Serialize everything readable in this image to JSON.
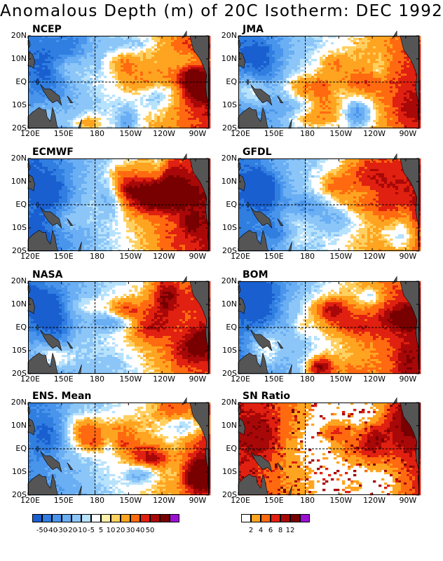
{
  "title": "Anomalous Depth (m) of 20C Isotherm: DEC 1992",
  "y_labels": [
    "20N",
    "10N",
    "EQ",
    "10S",
    "20S"
  ],
  "x_labels": [
    "120E",
    "150E",
    "180",
    "150W",
    "120W",
    "90W"
  ],
  "panels": [
    {
      "name": "NCEP",
      "style": "anom",
      "seed": 3,
      "warm": 0.55
    },
    {
      "name": "JMA",
      "style": "anom",
      "seed": 7,
      "warm": 0.5
    },
    {
      "name": "ECMWF",
      "style": "anom",
      "seed": 11,
      "warm": 0.65
    },
    {
      "name": "GFDL",
      "style": "anom",
      "seed": 17,
      "warm": 0.6
    },
    {
      "name": "NASA",
      "style": "anom",
      "seed": 23,
      "warm": 0.5
    },
    {
      "name": "BOM",
      "style": "anom",
      "seed": 29,
      "warm": 0.6
    },
    {
      "name": "ENS. Mean",
      "style": "anom",
      "seed": 31,
      "warm": 0.5
    },
    {
      "name": "SN Ratio",
      "style": "sn",
      "seed": 37,
      "warm": 0.6
    }
  ],
  "colorbar_anomaly": {
    "colors": [
      "#1a5fd0",
      "#2f7ee0",
      "#4a95ec",
      "#6aaef3",
      "#8cc6f8",
      "#b7e2fc",
      "#ffffff",
      "#fff0a8",
      "#ffd060",
      "#ffa420",
      "#ff6a10",
      "#e02010",
      "#a80808",
      "#780000",
      "#9a10d0"
    ],
    "labels": [
      "-50",
      "-40",
      "-30",
      "-20",
      "-10",
      "-5",
      "5",
      "10",
      "20",
      "30",
      "40",
      "50"
    ]
  },
  "colorbar_sn": {
    "colors": [
      "#ffffff",
      "#ffa420",
      "#ff6a10",
      "#e02010",
      "#a80808",
      "#780000",
      "#9a10d0"
    ],
    "labels": [
      "2",
      "4",
      "6",
      "8",
      "12"
    ]
  }
}
